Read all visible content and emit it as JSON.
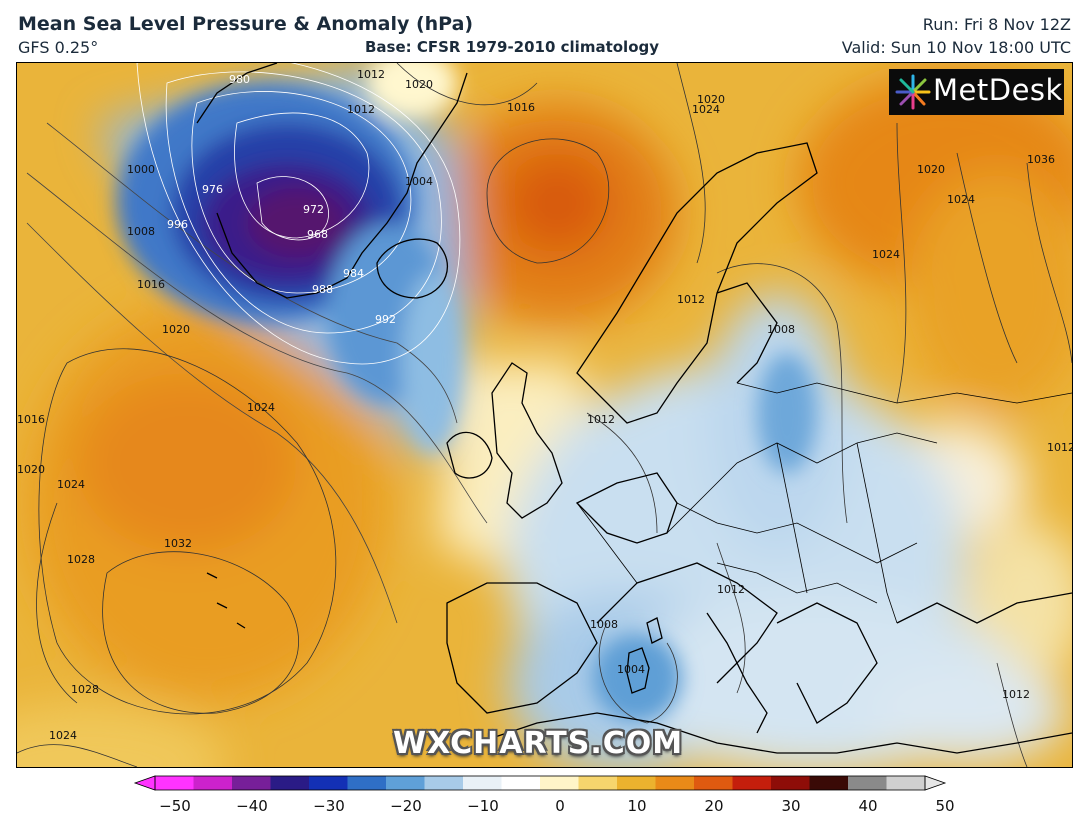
{
  "header": {
    "title": "Mean Sea Level Pressure & Anomaly (hPa)",
    "model": "GFS 0.25°",
    "base": "Base: CFSR 1979-2010 climatology",
    "run": "Run: Fri 8 Nov 12Z",
    "valid": "Valid: Sun 10 Nov 18:00 UTC"
  },
  "logo": {
    "text": "MetDesk",
    "icon": "metdesk-burst-logo"
  },
  "watermark": "WXCHARTS.COM",
  "isobar_labels": [
    "980",
    "976",
    "972",
    "968",
    "984",
    "988",
    "992",
    "996",
    "1000",
    "1004",
    "1008",
    "1012",
    "1016",
    "1020",
    "1024",
    "1028",
    "1032",
    "1036",
    "1012",
    "1016",
    "1020",
    "1024",
    "1020",
    "1024",
    "1028",
    "1024",
    "1016",
    "1020",
    "1024",
    "1008",
    "1012",
    "1012",
    "1004",
    "1008",
    "1012",
    "1012",
    "1020",
    "1024",
    "1012"
  ],
  "colorbar": {
    "ticks": [
      "−50",
      "−40",
      "−30",
      "−20",
      "−10",
      "0",
      "10",
      "20",
      "30",
      "40",
      "50"
    ],
    "colors": [
      "#ff33ff",
      "#cc22cc",
      "#771f99",
      "#2a1b86",
      "#1330b5",
      "#2f6fc6",
      "#5fa0d8",
      "#a8cbe8",
      "#e9f1f7",
      "#ffffff",
      "#fff5c8",
      "#f6d56d",
      "#ecb22e",
      "#e98a18",
      "#df5a10",
      "#c41e0c",
      "#8e0d08",
      "#3a0a06",
      "#8a8a8a",
      "#d0d0d0"
    ]
  },
  "colors": {
    "positive_anomaly": "#e98a18",
    "negative_anomaly": "#2f6fc6",
    "coastline": "#000000",
    "isobar": "#333333"
  }
}
